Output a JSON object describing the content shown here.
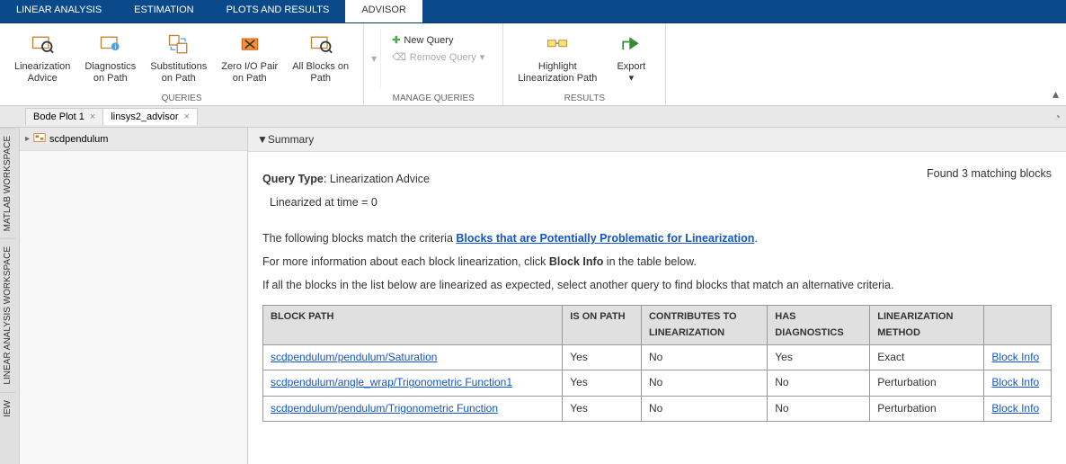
{
  "colors": {
    "tabbar_bg": "#0a4a8a",
    "link": "#1155cc",
    "header_bg": "#e0e0e0"
  },
  "top_tabs": {
    "items": [
      {
        "label": "LINEAR ANALYSIS"
      },
      {
        "label": "ESTIMATION"
      },
      {
        "label": "PLOTS AND RESULTS"
      },
      {
        "label": "ADVISOR"
      }
    ],
    "active_index": 3
  },
  "ribbon": {
    "groups": [
      {
        "label": "QUERIES",
        "buttons": [
          {
            "label_line1": "Linearization",
            "label_line2": "Advice",
            "icon": "advice"
          },
          {
            "label_line1": "Diagnostics",
            "label_line2": "on Path",
            "icon": "diagnostics"
          },
          {
            "label_line1": "Substitutions",
            "label_line2": "on Path",
            "icon": "substitutions"
          },
          {
            "label_line1": "Zero I/O Pair",
            "label_line2": "on Path",
            "icon": "zeroio"
          },
          {
            "label_line1": "All Blocks on",
            "label_line2": "Path",
            "icon": "allblocks"
          }
        ]
      },
      {
        "label": "MANAGE QUERIES",
        "stack": [
          {
            "label": "New Query",
            "icon": "plus",
            "enabled": true
          },
          {
            "label": "Remove Query",
            "icon": "erase",
            "enabled": false
          }
        ]
      },
      {
        "label": "RESULTS",
        "buttons": [
          {
            "label_line1": "Highlight",
            "label_line2": "Linearization Path",
            "icon": "highlight"
          },
          {
            "label_line1": "Export",
            "label_line2": "",
            "icon": "export",
            "dropdown": true
          }
        ]
      }
    ]
  },
  "doc_tabs": {
    "items": [
      {
        "label": "Bode Plot 1"
      },
      {
        "label": "linsys2_advisor"
      }
    ],
    "active_index": 1
  },
  "side_tabs": {
    "items": [
      {
        "label": "MATLAB WORKSPACE"
      },
      {
        "label": "LINEAR ANALYSIS WORKSPACE"
      },
      {
        "label": "IEW"
      }
    ]
  },
  "tree": {
    "root_label": "scdpendulum"
  },
  "summary": {
    "header": "Summary",
    "query_type_label": "Query Type",
    "query_type_value": "Linearization Advice",
    "found_text": "Found 3 matching blocks",
    "time_text": "Linearized at time = 0",
    "intro_prefix": "The following blocks match the criteria ",
    "intro_link": "Blocks that are Potentially Problematic for Linearization",
    "intro_suffix": ".",
    "more_info_prefix": "For more information about each block linearization, click ",
    "more_info_bold": "Block Info",
    "more_info_suffix": " in the table below.",
    "alt_text": "If all the blocks in the list below are linearized as expected, select another query to find blocks that match an alternative criteria."
  },
  "table": {
    "columns": [
      "BLOCK PATH",
      "IS ON PATH",
      "CONTRIBUTES TO LINEARIZATION",
      "HAS DIAGNOSTICS",
      "LINEARIZATION METHOD",
      ""
    ],
    "column_widths_pct": [
      38,
      10,
      16,
      13,
      14.5,
      8.5
    ],
    "rows": [
      {
        "path": "scdpendulum/pendulum/Saturation",
        "on_path": "Yes",
        "contributes": "No",
        "has_diag": "Yes",
        "method": "Exact",
        "info": "Block Info"
      },
      {
        "path": "scdpendulum/angle_wrap/Trigonometric Function1",
        "on_path": "Yes",
        "contributes": "No",
        "has_diag": "No",
        "method": "Perturbation",
        "info": "Block Info"
      },
      {
        "path": "scdpendulum/pendulum/Trigonometric Function",
        "on_path": "Yes",
        "contributes": "No",
        "has_diag": "No",
        "method": "Perturbation",
        "info": "Block Info"
      }
    ]
  }
}
